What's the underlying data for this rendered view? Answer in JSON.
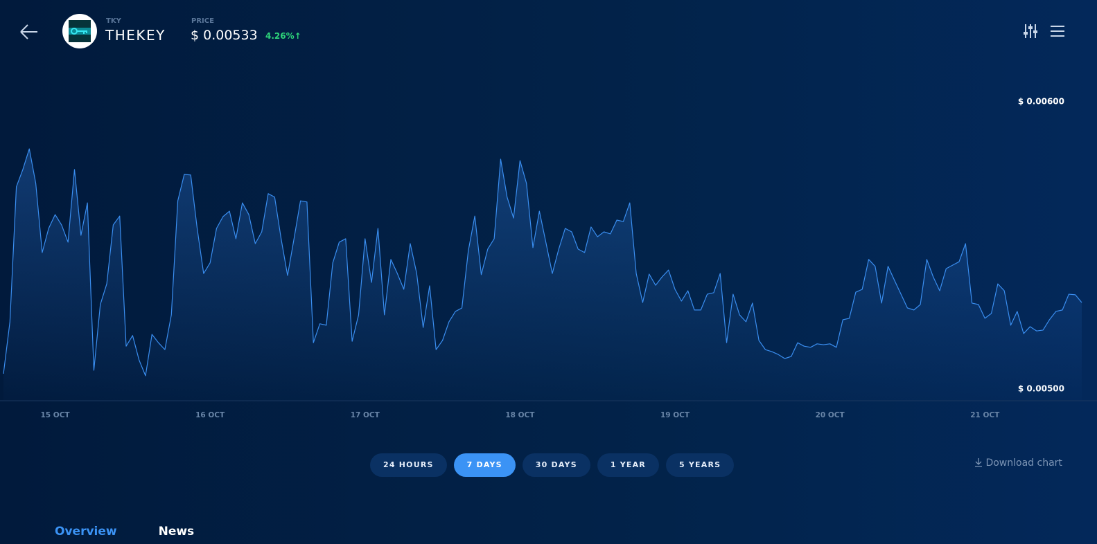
{
  "header": {
    "symbol": "TKY",
    "name": "THEKEY",
    "price_label": "PRICE",
    "price": "$ 0.00533",
    "change": "4.26%↑"
  },
  "chart_data": {
    "type": "line",
    "color": "#3a8ef0",
    "categories": [
      null,
      null,
      null,
      null,
      null,
      null,
      null,
      null,
      "15 OCT",
      null,
      null,
      null,
      null,
      null,
      null,
      null,
      null,
      null,
      null,
      null,
      null,
      null,
      null,
      null,
      null,
      null,
      null,
      null,
      null,
      null,
      null,
      null,
      "16 OCT",
      null,
      null,
      null,
      null,
      null,
      null,
      null,
      null,
      null,
      null,
      null,
      null,
      null,
      null,
      null,
      null,
      null,
      null,
      null,
      null,
      null,
      null,
      null,
      "17 OCT",
      null,
      null,
      null,
      null,
      null,
      null,
      null,
      null,
      null,
      null,
      null,
      null,
      null,
      null,
      null,
      null,
      null,
      null,
      null,
      null,
      null,
      null,
      null,
      "18 OCT",
      null,
      null,
      null,
      null,
      null,
      null,
      null,
      null,
      null,
      null,
      null,
      null,
      null,
      null,
      null,
      null,
      null,
      null,
      null,
      null,
      null,
      null,
      null,
      "19 OCT",
      null,
      null,
      null,
      null,
      null,
      null,
      null,
      null,
      null,
      null,
      null,
      null,
      null,
      null,
      null,
      null,
      null,
      null,
      null,
      null,
      null,
      null,
      null,
      "20 OCT",
      null,
      null,
      null,
      null,
      null,
      null,
      null,
      null,
      null,
      null,
      null,
      null,
      null,
      null,
      null,
      null,
      null,
      null,
      null,
      null,
      null,
      null,
      null,
      "21 OCT",
      null,
      null,
      null,
      null,
      null,
      null,
      null,
      null,
      null,
      null,
      null,
      null,
      null,
      null,
      null
    ],
    "values": [
      0.005053,
      0.005234,
      0.005704,
      0.005764,
      0.005836,
      0.005716,
      0.005475,
      0.005559,
      0.005607,
      0.005571,
      0.005511,
      0.005764,
      0.005535,
      0.005648,
      0.005065,
      0.005294,
      0.005366,
      0.005571,
      0.005602,
      0.005149,
      0.005186,
      0.005101,
      0.005046,
      0.00519,
      0.005161,
      0.005137,
      0.005258,
      0.005655,
      0.005747,
      0.005745,
      0.005559,
      0.005402,
      0.005439,
      0.005559,
      0.0056,
      0.005619,
      0.005523,
      0.005648,
      0.005607,
      0.005506,
      0.005547,
      0.00568,
      0.005668,
      0.005523,
      0.005395,
      0.005523,
      0.005655,
      0.005651,
      0.005161,
      0.005227,
      0.005222,
      0.005439,
      0.005511,
      0.005523,
      0.005166,
      0.005258,
      0.005523,
      0.005371,
      0.005559,
      0.005258,
      0.005451,
      0.005402,
      0.005347,
      0.005506,
      0.005402,
      0.005214,
      0.005359,
      0.005137,
      0.005169,
      0.005234,
      0.00527,
      0.005282,
      0.005482,
      0.005602,
      0.005398,
      0.005487,
      0.005523,
      0.0058,
      0.005668,
      0.005595,
      0.005795,
      0.005716,
      0.005492,
      0.005619,
      0.005511,
      0.005402,
      0.005487,
      0.005559,
      0.005547,
      0.005487,
      0.005475,
      0.005564,
      0.00553,
      0.005547,
      0.00554,
      0.005588,
      0.005583,
      0.005648,
      0.005402,
      0.005301,
      0.0054,
      0.005361,
      0.00539,
      0.005414,
      0.005347,
      0.005306,
      0.005342,
      0.005275,
      0.005275,
      0.00533,
      0.005335,
      0.005402,
      0.005161,
      0.00533,
      0.005258,
      0.005234,
      0.005299,
      0.005169,
      0.005137,
      0.00513,
      0.00512,
      0.005106,
      0.005113,
      0.005161,
      0.005149,
      0.005145,
      0.005157,
      0.005154,
      0.005157,
      0.005145,
      0.005241,
      0.005246,
      0.005337,
      0.005347,
      0.005451,
      0.005427,
      0.005299,
      0.005427,
      0.005378,
      0.00533,
      0.005282,
      0.005275,
      0.005294,
      0.005451,
      0.00539,
      0.005342,
      0.005419,
      0.005431,
      0.005443,
      0.005506,
      0.005299,
      0.005294,
      0.005246,
      0.005263,
      0.005366,
      0.005342,
      0.005222,
      0.00527,
      0.005193,
      0.005217,
      0.005202,
      0.005205,
      0.005241,
      0.00527,
      0.005275,
      0.00533,
      0.005328,
      0.005301
    ],
    "ylim": [
      0.00496,
      0.00611
    ],
    "yticks": [
      {
        "value": 0.006,
        "label": "$ 0.00600"
      },
      {
        "value": 0.005,
        "label": "$ 0.00500"
      }
    ]
  },
  "ranges": {
    "options": [
      "24 HOURS",
      "7 DAYS",
      "30 DAYS",
      "1 YEAR",
      "5 YEARS"
    ],
    "active": 1
  },
  "download": "Download chart",
  "tabs": {
    "items": [
      "Overview",
      "News"
    ],
    "active": 0
  }
}
